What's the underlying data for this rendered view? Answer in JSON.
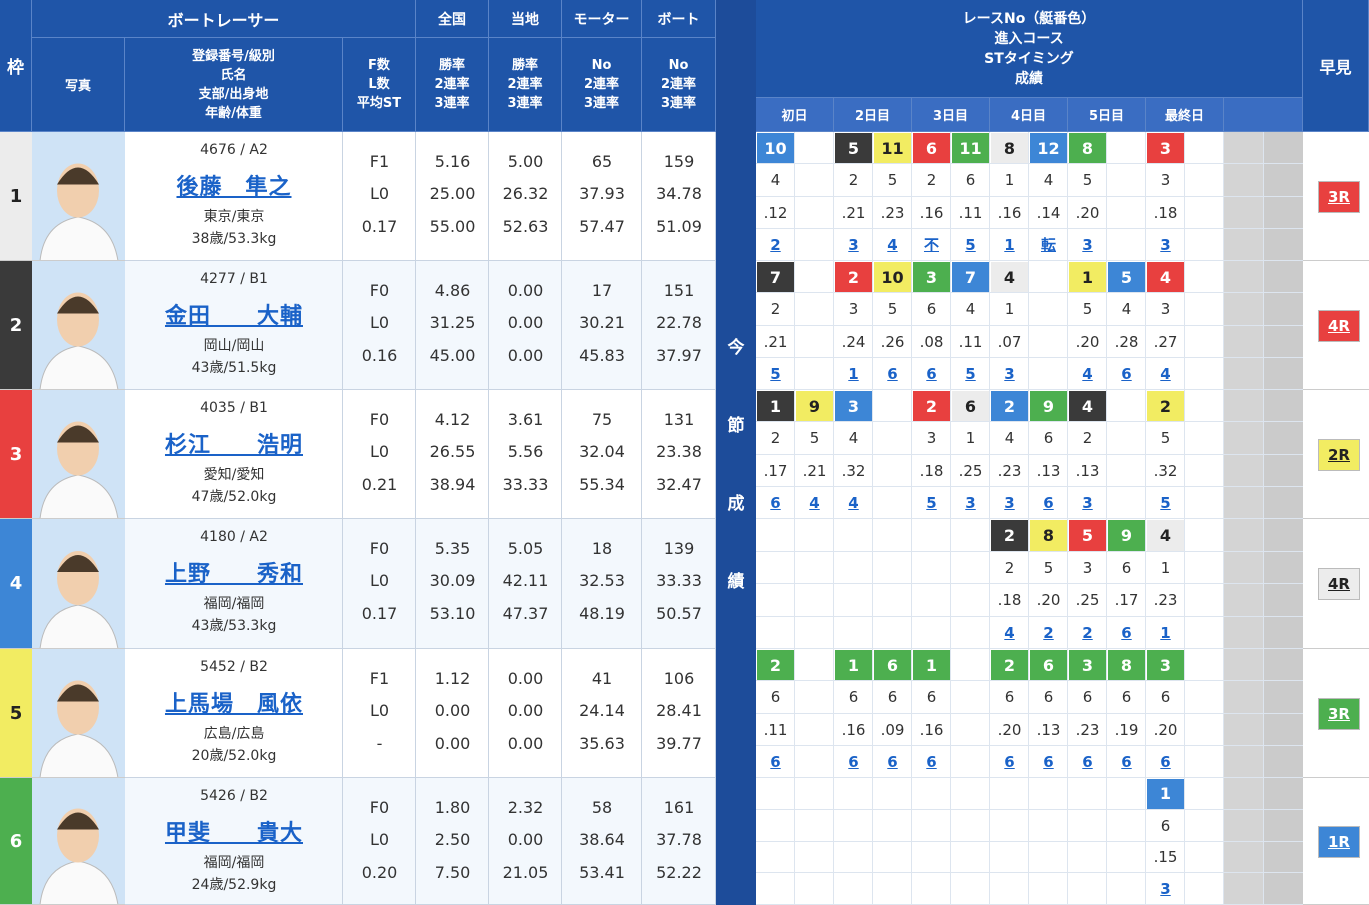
{
  "header": {
    "racer": "ボートレーサー",
    "national": "全国",
    "local": "当地",
    "motor": "モーター",
    "boat": "ボート",
    "waku": "枠",
    "photo": "写真",
    "name_lines": [
      "登録番号/級別",
      "氏名",
      "支部/出身地",
      "年齢/体重"
    ],
    "fl_lines": [
      "F数",
      "L数",
      "平均ST"
    ],
    "rate_lines": [
      "勝率",
      "2連率",
      "3連率"
    ],
    "no_lines": [
      "No",
      "2連率",
      "3連率"
    ],
    "race_lines": [
      "レースNo（艇番色）",
      "進入コース",
      "STタイミング",
      "成績"
    ],
    "days": [
      "初日",
      "2日目",
      "3日目",
      "4日目",
      "5日目",
      "最終日"
    ],
    "side": [
      "今",
      "節",
      "成",
      "績"
    ],
    "hayami": "早見"
  },
  "riders": [
    {
      "waku": "1",
      "color": "white",
      "id": "4676 / A2",
      "name": "後藤　隼之",
      "branch": "東京/東京",
      "age": "38歳/53.3kg",
      "fl": [
        "F1",
        "L0",
        "0.17"
      ],
      "national": [
        "5.16",
        "25.00",
        "55.00"
      ],
      "local": [
        "5.00",
        "26.32",
        "52.63"
      ],
      "motor": [
        "65",
        "37.93",
        "57.47"
      ],
      "boat": [
        "159",
        "34.78",
        "51.09"
      ],
      "hayami": "3R",
      "hayami_color": "red",
      "races": [
        {
          "race": "10",
          "color": "blue",
          "course": "4",
          "st": ".12",
          "result": "2"
        },
        null,
        {
          "race": "5",
          "color": "black",
          "course": "2",
          "st": ".21",
          "result": "3"
        },
        {
          "race": "11",
          "color": "yellow",
          "course": "5",
          "st": ".23",
          "result": "4"
        },
        {
          "race": "6",
          "color": "red",
          "course": "2",
          "st": ".16",
          "result": "不"
        },
        {
          "race": "11",
          "color": "green",
          "course": "6",
          "st": ".11",
          "result": "5"
        },
        {
          "race": "8",
          "color": "white",
          "course": "1",
          "st": ".16",
          "result": "1"
        },
        {
          "race": "12",
          "color": "blue",
          "course": "4",
          "st": ".14",
          "result": "転"
        },
        {
          "race": "8",
          "color": "green",
          "course": "5",
          "st": ".20",
          "result": "3"
        },
        null,
        {
          "race": "3",
          "color": "red",
          "course": "3",
          "st": ".18",
          "result": "3"
        },
        null
      ]
    },
    {
      "waku": "2",
      "color": "black",
      "id": "4277 / B1",
      "name": "金田　　大輔",
      "branch": "岡山/岡山",
      "age": "43歳/51.5kg",
      "fl": [
        "F0",
        "L0",
        "0.16"
      ],
      "national": [
        "4.86",
        "31.25",
        "45.00"
      ],
      "local": [
        "0.00",
        "0.00",
        "0.00"
      ],
      "motor": [
        "17",
        "30.21",
        "45.83"
      ],
      "boat": [
        "151",
        "22.78",
        "37.97"
      ],
      "hayami": "4R",
      "hayami_color": "red",
      "races": [
        {
          "race": "7",
          "color": "black",
          "course": "2",
          "st": ".21",
          "result": "5"
        },
        null,
        {
          "race": "2",
          "color": "red",
          "course": "3",
          "st": ".24",
          "result": "1"
        },
        {
          "race": "10",
          "color": "yellow",
          "course": "5",
          "st": ".26",
          "result": "6"
        },
        {
          "race": "3",
          "color": "green",
          "course": "6",
          "st": ".08",
          "result": "6"
        },
        {
          "race": "7",
          "color": "blue",
          "course": "4",
          "st": ".11",
          "result": "5"
        },
        {
          "race": "4",
          "color": "white",
          "course": "1",
          "st": ".07",
          "result": "3"
        },
        null,
        {
          "race": "1",
          "color": "yellow",
          "course": "5",
          "st": ".20",
          "result": "4"
        },
        {
          "race": "5",
          "color": "blue",
          "course": "4",
          "st": ".28",
          "result": "6"
        },
        {
          "race": "4",
          "color": "red",
          "course": "3",
          "st": ".27",
          "result": "4"
        },
        null
      ]
    },
    {
      "waku": "3",
      "color": "red",
      "id": "4035 / B1",
      "name": "杉江　　浩明",
      "branch": "愛知/愛知",
      "age": "47歳/52.0kg",
      "fl": [
        "F0",
        "L0",
        "0.21"
      ],
      "national": [
        "4.12",
        "26.55",
        "38.94"
      ],
      "local": [
        "3.61",
        "5.56",
        "33.33"
      ],
      "motor": [
        "75",
        "32.04",
        "55.34"
      ],
      "boat": [
        "131",
        "23.38",
        "32.47"
      ],
      "hayami": "2R",
      "hayami_color": "yellow",
      "races": [
        {
          "race": "1",
          "color": "black",
          "course": "2",
          "st": ".17",
          "result": "6"
        },
        {
          "race": "9",
          "color": "yellow",
          "course": "5",
          "st": ".21",
          "result": "4"
        },
        {
          "race": "3",
          "color": "blue",
          "course": "4",
          "st": ".32",
          "result": "4"
        },
        null,
        {
          "race": "2",
          "color": "red",
          "course": "3",
          "st": ".18",
          "result": "5"
        },
        {
          "race": "6",
          "color": "white",
          "course": "1",
          "st": ".25",
          "result": "3"
        },
        {
          "race": "2",
          "color": "blue",
          "course": "4",
          "st": ".23",
          "result": "3"
        },
        {
          "race": "9",
          "color": "green",
          "course": "6",
          "st": ".13",
          "result": "6"
        },
        {
          "race": "4",
          "color": "black",
          "course": "2",
          "st": ".13",
          "result": "3"
        },
        null,
        {
          "race": "2",
          "color": "yellow",
          "course": "5",
          "st": ".32",
          "result": "5"
        },
        null
      ]
    },
    {
      "waku": "4",
      "color": "blue",
      "id": "4180 / A2",
      "name": "上野　　秀和",
      "branch": "福岡/福岡",
      "age": "43歳/53.3kg",
      "fl": [
        "F0",
        "L0",
        "0.17"
      ],
      "national": [
        "5.35",
        "30.09",
        "53.10"
      ],
      "local": [
        "5.05",
        "42.11",
        "47.37"
      ],
      "motor": [
        "18",
        "32.53",
        "48.19"
      ],
      "boat": [
        "139",
        "33.33",
        "50.57"
      ],
      "hayami": "4R",
      "hayami_color": "white",
      "races": [
        null,
        null,
        null,
        null,
        null,
        null,
        {
          "race": "2",
          "color": "black",
          "course": "2",
          "st": ".18",
          "result": "4"
        },
        {
          "race": "8",
          "color": "yellow",
          "course": "5",
          "st": ".20",
          "result": "2"
        },
        {
          "race": "5",
          "color": "red",
          "course": "3",
          "st": ".25",
          "result": "2"
        },
        {
          "race": "9",
          "color": "green",
          "course": "6",
          "st": ".17",
          "result": "6"
        },
        {
          "race": "4",
          "color": "white",
          "course": "1",
          "st": ".23",
          "result": "1"
        },
        null
      ]
    },
    {
      "waku": "5",
      "color": "yellow",
      "id": "5452 / B2",
      "name": "上馬場　風依",
      "branch": "広島/広島",
      "age": "20歳/52.0kg",
      "fl": [
        "F1",
        "L0",
        "-"
      ],
      "national": [
        "1.12",
        "0.00",
        "0.00"
      ],
      "local": [
        "0.00",
        "0.00",
        "0.00"
      ],
      "motor": [
        "41",
        "24.14",
        "35.63"
      ],
      "boat": [
        "106",
        "28.41",
        "39.77"
      ],
      "hayami": "3R",
      "hayami_color": "green",
      "races": [
        {
          "race": "2",
          "color": "green",
          "course": "6",
          "st": ".11",
          "result": "6"
        },
        null,
        {
          "race": "1",
          "color": "green",
          "course": "6",
          "st": ".16",
          "result": "6"
        },
        {
          "race": "6",
          "color": "green",
          "course": "6",
          "st": ".09",
          "result": "6"
        },
        {
          "race": "1",
          "color": "green",
          "course": "6",
          "st": ".16",
          "result": "6"
        },
        null,
        {
          "race": "2",
          "color": "green",
          "course": "6",
          "st": ".20",
          "result": "6"
        },
        {
          "race": "6",
          "color": "green",
          "course": "6",
          "st": ".13",
          "result": "6"
        },
        {
          "race": "3",
          "color": "green",
          "course": "6",
          "st": ".23",
          "result": "6"
        },
        {
          "race": "8",
          "color": "green",
          "course": "6",
          "st": ".19",
          "result": "6"
        },
        {
          "race": "3",
          "color": "green",
          "course": "6",
          "st": ".20",
          "result": "6"
        },
        null
      ]
    },
    {
      "waku": "6",
      "color": "green",
      "id": "5426 / B2",
      "name": "甲斐　　貴大",
      "branch": "福岡/福岡",
      "age": "24歳/52.9kg",
      "fl": [
        "F0",
        "L0",
        "0.20"
      ],
      "national": [
        "1.80",
        "2.50",
        "7.50"
      ],
      "local": [
        "2.32",
        "0.00",
        "21.05"
      ],
      "motor": [
        "58",
        "38.64",
        "53.41"
      ],
      "boat": [
        "161",
        "37.78",
        "52.22"
      ],
      "hayami": "1R",
      "hayami_color": "blue",
      "races": [
        null,
        null,
        null,
        null,
        null,
        null,
        null,
        null,
        null,
        null,
        {
          "race": "1",
          "color": "blue",
          "course": "6",
          "st": ".15",
          "result": "3"
        },
        null
      ]
    }
  ]
}
